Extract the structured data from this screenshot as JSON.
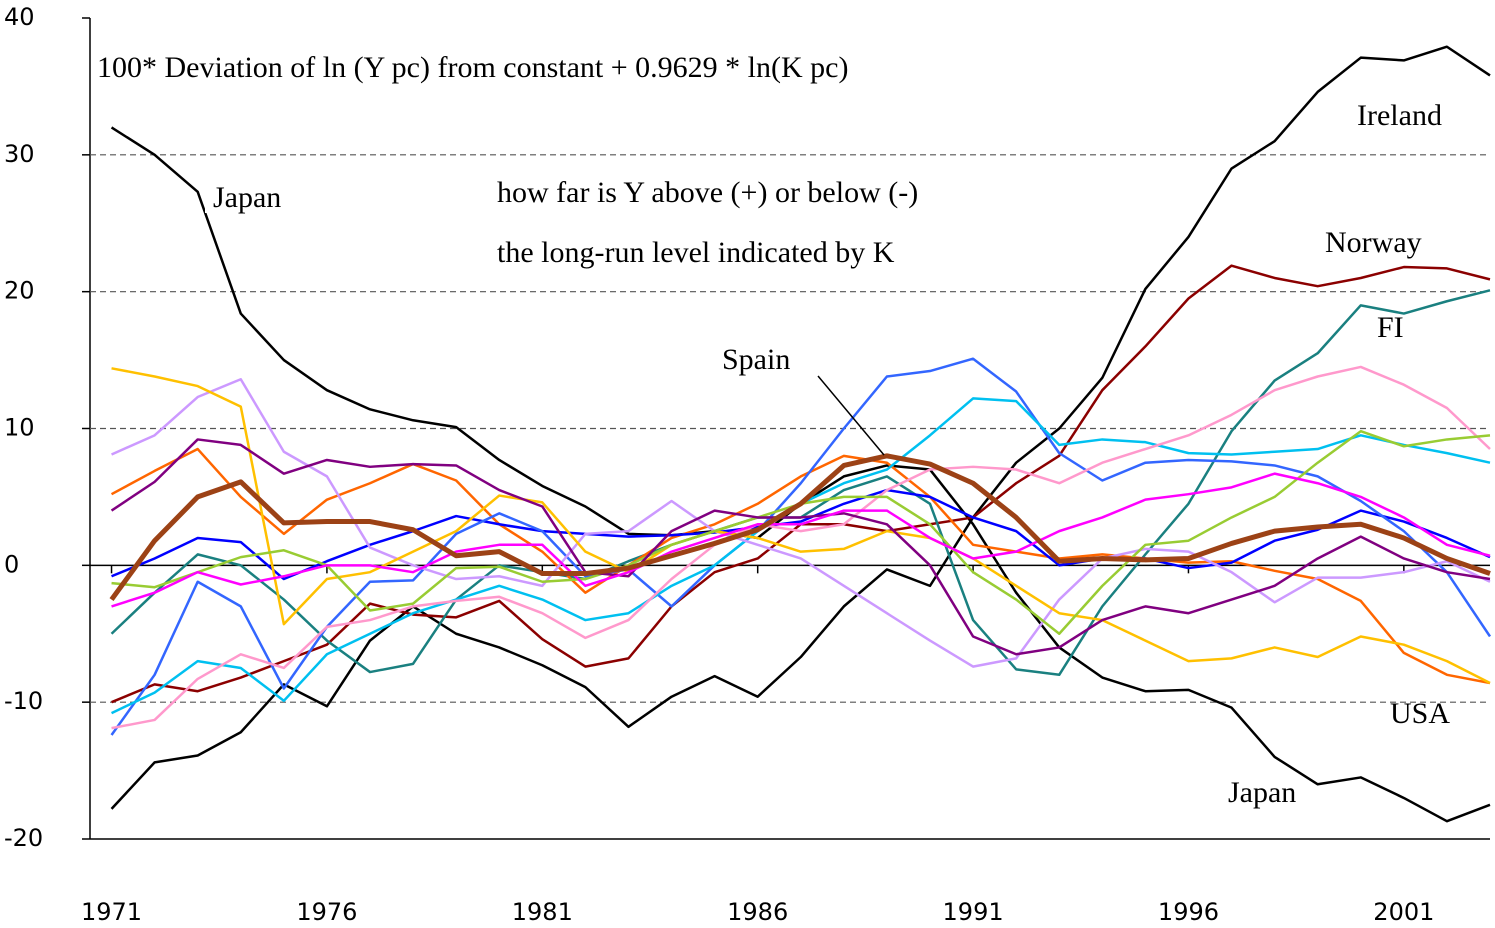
{
  "chart_data": {
    "type": "line",
    "title": "100* Deviation of ln (Y pc) from constant + 0.9629 * ln(K pc)",
    "subtitle": [
      "how far is Y above (+) or below (-)",
      "the long-run level indicated by K"
    ],
    "annotations": [
      "Ireland",
      "Norway",
      "FI",
      "USA",
      "Japan",
      "Japan",
      "Spain"
    ],
    "x": [
      1971,
      1972,
      1973,
      1974,
      1975,
      1976,
      1977,
      1978,
      1979,
      1980,
      1981,
      1982,
      1983,
      1984,
      1985,
      1986,
      1987,
      1988,
      1989,
      1990,
      1991,
      1992,
      1993,
      1994,
      1995,
      1996,
      1997,
      1998,
      1999,
      2000,
      2001,
      2002,
      2003
    ],
    "xlim": [
      1970.5,
      2003
    ],
    "xticks": [
      1971,
      1976,
      1981,
      1986,
      1991,
      1996,
      2001
    ],
    "ylim": [
      -20,
      40
    ],
    "yticks": [
      40,
      30,
      20,
      10,
      0,
      -10,
      -20
    ],
    "grid": true,
    "series": [
      {
        "color": "#000000",
        "values": [
          -17.8,
          -14.4,
          -13.9,
          -12.2,
          -8.7,
          -10.3,
          -5.5,
          -3.0,
          -5.0,
          -6.0,
          -7.3,
          -8.9,
          -11.8,
          -9.6,
          -8.1,
          -9.6,
          -6.7,
          -3.0,
          -0.3,
          -1.5,
          3.5,
          7.5,
          10.0,
          13.7,
          20.2,
          24.0,
          29.0,
          31.0,
          34.6,
          37.1,
          36.9,
          37.9,
          35.8
        ]
      },
      {
        "color": "#000000",
        "values": [
          32,
          30,
          27.3,
          18.4,
          15,
          12.8,
          11.4,
          10.6,
          10.1,
          7.7,
          5.8,
          4.3,
          2.3,
          2.2,
          2.5,
          2.0,
          4.5,
          6.5,
          7.3,
          7.0,
          3.0,
          -2.0,
          -6.0,
          -8.2,
          -9.2,
          -9.1,
          -10.4,
          -14.0,
          -16.0,
          -15.5,
          -17.0,
          -18.7,
          -17.5
        ]
      },
      {
        "color": "#8b0000",
        "values": [
          -10,
          -8.7,
          -9.2,
          -8.2,
          -7.0,
          -5.8,
          -2.8,
          -3.6,
          -3.8,
          -2.6,
          -5.4,
          -7.4,
          -6.8,
          -3.0,
          -0.5,
          0.5,
          3.0,
          3.0,
          2.5,
          3.0,
          3.5,
          6.0,
          8.0,
          12.8,
          16.0,
          19.5,
          21.9,
          21.0,
          20.4,
          21.0,
          21.8,
          21.7,
          20.9
        ]
      },
      {
        "color": "#1a8080",
        "values": [
          -5,
          -2,
          0.8,
          0,
          -2.5,
          -5.5,
          -7.8,
          -7.2,
          -2.5,
          0,
          -0.5,
          -1.0,
          0.3,
          1.5,
          2.5,
          3.5,
          3.5,
          5.5,
          6.5,
          4.5,
          -4.0,
          -7.6,
          -8,
          -3.0,
          0.8,
          4.5,
          9.8,
          13.5,
          15.5,
          19.0,
          18.4,
          19.3,
          20.1
        ]
      },
      {
        "color": "#ff6600",
        "values": [
          5.2,
          6.9,
          8.5,
          5.0,
          2.3,
          4.8,
          6.0,
          7.4,
          6.2,
          3.0,
          1.0,
          -2.0,
          0.0,
          2.0,
          3.0,
          4.5,
          6.5,
          8.0,
          7.5,
          5.0,
          1.5,
          1.0,
          0.5,
          0.8,
          0.5,
          0.2,
          0.3,
          -0.4,
          -1.0,
          -2.6,
          -6.4,
          -8.0,
          -8.6
        ]
      },
      {
        "color": "#0000ff",
        "values": [
          -0.8,
          0.5,
          2.0,
          1.7,
          -1.0,
          0.3,
          1.5,
          2.5,
          3.6,
          3.0,
          2.5,
          2.3,
          2.1,
          2.2,
          2.4,
          2.8,
          3.2,
          4.5,
          5.5,
          5.0,
          3.5,
          2.5,
          0.0,
          0.5,
          0.5,
          -0.2,
          0.2,
          1.8,
          2.6,
          4.0,
          3.2,
          2.0,
          0.6
        ]
      },
      {
        "color": "#3366ff",
        "values": [
          -12.4,
          -8.0,
          -1.2,
          -3.0,
          -9.0,
          -4.5,
          -1.2,
          -1.1,
          2.3,
          3.8,
          2.5,
          -0.8,
          -0.3,
          -3.0,
          0.0,
          2.5,
          6.0,
          10.0,
          13.8,
          14.2,
          15.1,
          12.7,
          8.2,
          6.2,
          7.5,
          7.7,
          7.6,
          7.3,
          6.5,
          4.7,
          2.5,
          -0.5,
          -5.2
        ]
      },
      {
        "color": "#00c0f0",
        "values": [
          -10.8,
          -9.3,
          -7.0,
          -7.5,
          -9.9,
          -6.5,
          -5.0,
          -3.5,
          -2.5,
          -1.5,
          -2.5,
          -4.0,
          -3.5,
          -1.5,
          0.0,
          2.5,
          4.5,
          6.0,
          7.0,
          9.5,
          12.2,
          12.0,
          8.8,
          9.2,
          9.0,
          8.2,
          8.1,
          8.3,
          8.5,
          9.5,
          8.8,
          8.2,
          7.5
        ]
      },
      {
        "color": "#ff99cc",
        "values": [
          -11.9,
          -11.3,
          -8.3,
          -6.5,
          -7.5,
          -4.5,
          -4.0,
          -3.0,
          -2.6,
          -2.3,
          -3.5,
          -5.3,
          -4.0,
          -1.0,
          1.5,
          3.0,
          2.5,
          3.0,
          5.5,
          7.0,
          7.2,
          7.0,
          6.0,
          7.5,
          8.5,
          9.5,
          11.0,
          12.8,
          13.8,
          14.5,
          13.2,
          11.5,
          8.5
        ]
      },
      {
        "color": "#cc99ff",
        "values": [
          8.1,
          9.5,
          12.3,
          13.6,
          8.3,
          6.5,
          1.3,
          0.0,
          -1.0,
          -0.8,
          -1.5,
          2.3,
          2.5,
          4.7,
          2.5,
          1.5,
          0.5,
          -1.5,
          -3.5,
          -5.5,
          -7.4,
          -6.8,
          -2.5,
          0.5,
          1.2,
          1.0,
          -0.5,
          -2.7,
          -0.9,
          -0.9,
          -0.5,
          0.3,
          -1.2
        ]
      },
      {
        "color": "#ffc000",
        "values": [
          14.4,
          13.8,
          13.1,
          11.6,
          -4.3,
          -1.0,
          -0.5,
          1.0,
          2.5,
          5.1,
          4.6,
          1.0,
          -0.5,
          1.5,
          2.5,
          2.0,
          1.0,
          1.2,
          2.5,
          2.0,
          0.5,
          -1.5,
          -3.5,
          -4.0,
          -5.5,
          -7.0,
          -6.8,
          -6.0,
          -6.7,
          -5.2,
          -5.8,
          -7.0,
          -8.6
        ]
      },
      {
        "color": "#99cc33",
        "values": [
          -1.3,
          -1.6,
          -0.5,
          0.6,
          1.1,
          0.0,
          -3.3,
          -2.8,
          -0.2,
          -0.1,
          -1.2,
          -1.0,
          0.0,
          1.5,
          2.5,
          3.5,
          4.5,
          5.0,
          5.0,
          3.0,
          -0.5,
          -2.5,
          -5.0,
          -1.5,
          1.5,
          1.8,
          3.5,
          5.0,
          7.5,
          9.8,
          8.7,
          9.2,
          9.5
        ]
      },
      {
        "color": "#800080",
        "values": [
          4.0,
          6.1,
          9.2,
          8.8,
          6.7,
          7.7,
          7.2,
          7.4,
          7.3,
          5.5,
          4.3,
          -0.5,
          -0.8,
          2.5,
          4.0,
          3.5,
          3.5,
          3.8,
          3.0,
          0.0,
          -5.2,
          -6.5,
          -6.0,
          -4.0,
          -3.0,
          -3.5,
          -2.5,
          -1.5,
          0.5,
          2.1,
          0.5,
          -0.5,
          -1.0
        ]
      },
      {
        "color": "#ff00ff",
        "values": [
          -3.0,
          -2.0,
          -0.5,
          -1.4,
          -0.8,
          0.0,
          0.0,
          -0.5,
          1.0,
          1.5,
          1.5,
          -1.5,
          -0.5,
          1.0,
          2.0,
          3.0,
          3.0,
          4.0,
          4.0,
          2.0,
          0.5,
          1.0,
          2.5,
          3.5,
          4.8,
          5.2,
          5.7,
          6.7,
          6.0,
          5.0,
          3.5,
          1.5,
          0.7
        ]
      },
      {
        "color": "#9c4216",
        "width": 5,
        "values": [
          -2.5,
          1.8,
          5.0,
          6.1,
          3.1,
          3.2,
          3.2,
          2.6,
          0.7,
          1.0,
          -0.6,
          -0.6,
          -0.2,
          0.7,
          1.6,
          2.6,
          4.5,
          7.3,
          8.0,
          7.4,
          6.0,
          3.5,
          0.3,
          0.5,
          0.4,
          0.5,
          1.6,
          2.5,
          2.8,
          3.0,
          2.0,
          0.5,
          -0.6
        ]
      }
    ]
  }
}
